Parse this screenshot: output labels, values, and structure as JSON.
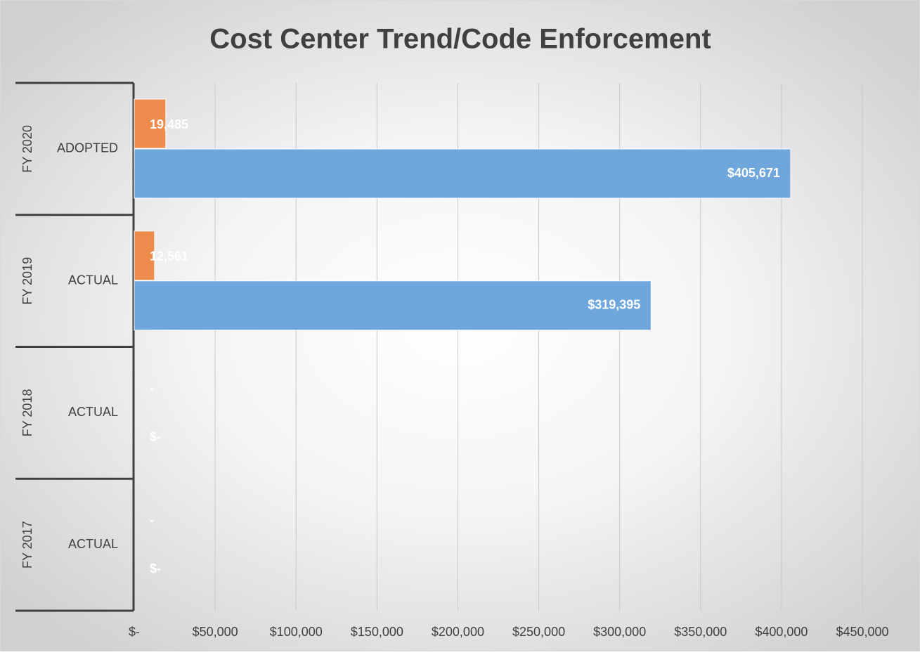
{
  "chart_data": {
    "type": "hbar",
    "title": "Cost Center Trend/Code Enforcement",
    "category_groups": [
      "FY 2020",
      "FY 2019",
      "FY 2018",
      "FY 2017"
    ],
    "categories": [
      "ADOPTED",
      "ACTUAL",
      "ACTUAL",
      "ACTUAL"
    ],
    "series": [
      {
        "color": "#ed8b4d",
        "values": [
          19485,
          12561,
          0,
          0
        ],
        "value_labels": [
          "19,485",
          "12,561",
          "-",
          "-"
        ]
      },
      {
        "color": "#6fa6dc",
        "values": [
          405671,
          319395,
          0,
          0
        ],
        "value_labels": [
          "$405,671",
          "$319,395",
          "$-",
          "$-"
        ]
      }
    ],
    "xlim": [
      0,
      450000
    ],
    "xticks": [
      {
        "value": 0,
        "label": "$-"
      },
      {
        "value": 50000,
        "label": "$50,000"
      },
      {
        "value": 100000,
        "label": "$100,000"
      },
      {
        "value": 150000,
        "label": "$150,000"
      },
      {
        "value": 200000,
        "label": "$200,000"
      },
      {
        "value": 250000,
        "label": "$250,000"
      },
      {
        "value": 300000,
        "label": "$300,000"
      },
      {
        "value": 350000,
        "label": "$350,000"
      },
      {
        "value": 400000,
        "label": "$400,000"
      },
      {
        "value": 450000,
        "label": "$450,000"
      }
    ],
    "grid": true
  }
}
